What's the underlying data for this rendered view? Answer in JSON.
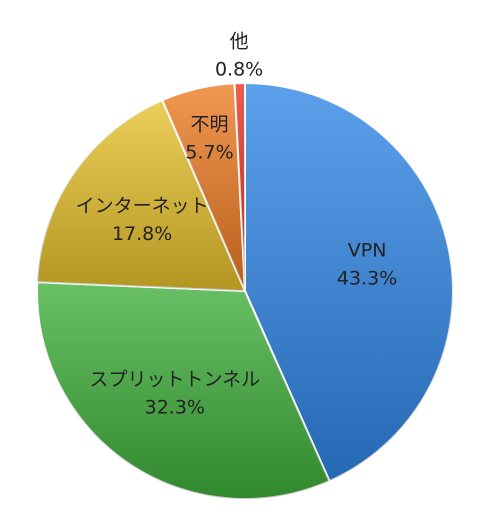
{
  "chart_data": {
    "type": "pie",
    "categories": [
      "VPN",
      "スプリットトンネル",
      "インターネット",
      "不明",
      "他"
    ],
    "values": [
      43.3,
      32.3,
      17.8,
      5.7,
      0.8
    ],
    "value_labels": [
      "43.3%",
      "32.3%",
      "17.8%",
      "5.7%",
      "0.8%"
    ],
    "colors": [
      "#2f86e6",
      "#3fae3a",
      "#e6c12c",
      "#ec7a22",
      "#e8301c"
    ]
  }
}
